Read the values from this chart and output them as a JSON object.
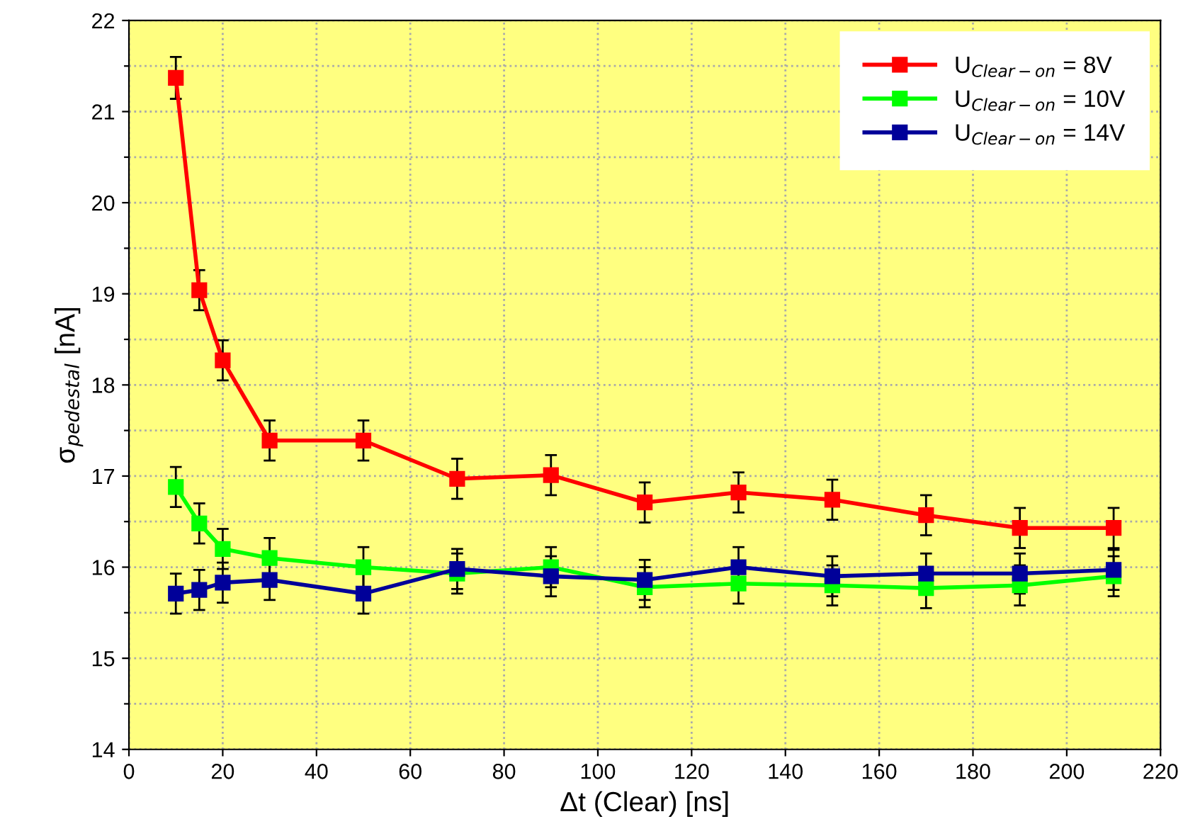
{
  "chart_data": {
    "type": "line",
    "xlabel": "Δt (Clear) [ns]",
    "ylabel": "σ$_{pedestal}$ [nA]",
    "x": [
      10,
      15,
      20,
      30,
      50,
      70,
      90,
      110,
      130,
      150,
      170,
      190,
      210
    ],
    "series": [
      {
        "name": "U$_{Clear−on}$ = 8V",
        "color": "#ff0000",
        "values": [
          21.37,
          19.04,
          18.27,
          17.39,
          17.39,
          16.97,
          17.01,
          16.71,
          16.82,
          16.74,
          16.57,
          16.43,
          16.43
        ],
        "errors": [
          0.23,
          0.22,
          0.22,
          0.22,
          0.22,
          0.22,
          0.22,
          0.22,
          0.22,
          0.22,
          0.22,
          0.22,
          0.22
        ]
      },
      {
        "name": "U$_{Clear−on}$ = 10V",
        "color": "#00ff00",
        "values": [
          16.88,
          16.48,
          16.2,
          16.1,
          16.0,
          15.93,
          16.0,
          15.78,
          15.82,
          15.8,
          15.77,
          15.8,
          15.9
        ],
        "errors": [
          0.22,
          0.22,
          0.22,
          0.22,
          0.22,
          0.22,
          0.22,
          0.22,
          0.22,
          0.22,
          0.22,
          0.22,
          0.22
        ]
      },
      {
        "name": "U$_{Clear−on}$ = 14V",
        "color": "#000099",
        "values": [
          15.71,
          15.75,
          15.83,
          15.86,
          15.71,
          15.98,
          15.9,
          15.86,
          16.0,
          15.9,
          15.93,
          15.93,
          15.97
        ],
        "errors": [
          0.22,
          0.22,
          0.22,
          0.22,
          0.22,
          0.22,
          0.22,
          0.22,
          0.22,
          0.22,
          0.22,
          0.22,
          0.22
        ]
      }
    ],
    "xlim": [
      0,
      220
    ],
    "xticks": [
      0,
      20,
      40,
      60,
      80,
      100,
      120,
      140,
      160,
      180,
      200,
      220
    ],
    "ylim": [
      14,
      22
    ],
    "yticks": [
      14,
      {
        "value": 14.5,
        "label": null
      },
      15,
      {
        "value": 15.5,
        "label": null
      },
      16,
      {
        "value": 16.5,
        "label": null
      },
      17,
      {
        "value": 17.5,
        "label": null
      },
      18,
      {
        "value": 18.5,
        "label": null
      },
      19,
      {
        "value": 19.5,
        "label": null
      },
      20,
      {
        "value": 20.5,
        "label": null
      },
      21,
      {
        "value": 21.5,
        "label": null
      },
      22
    ],
    "grid": true,
    "legend": "top right",
    "marker": "square",
    "line_style": "solid"
  }
}
